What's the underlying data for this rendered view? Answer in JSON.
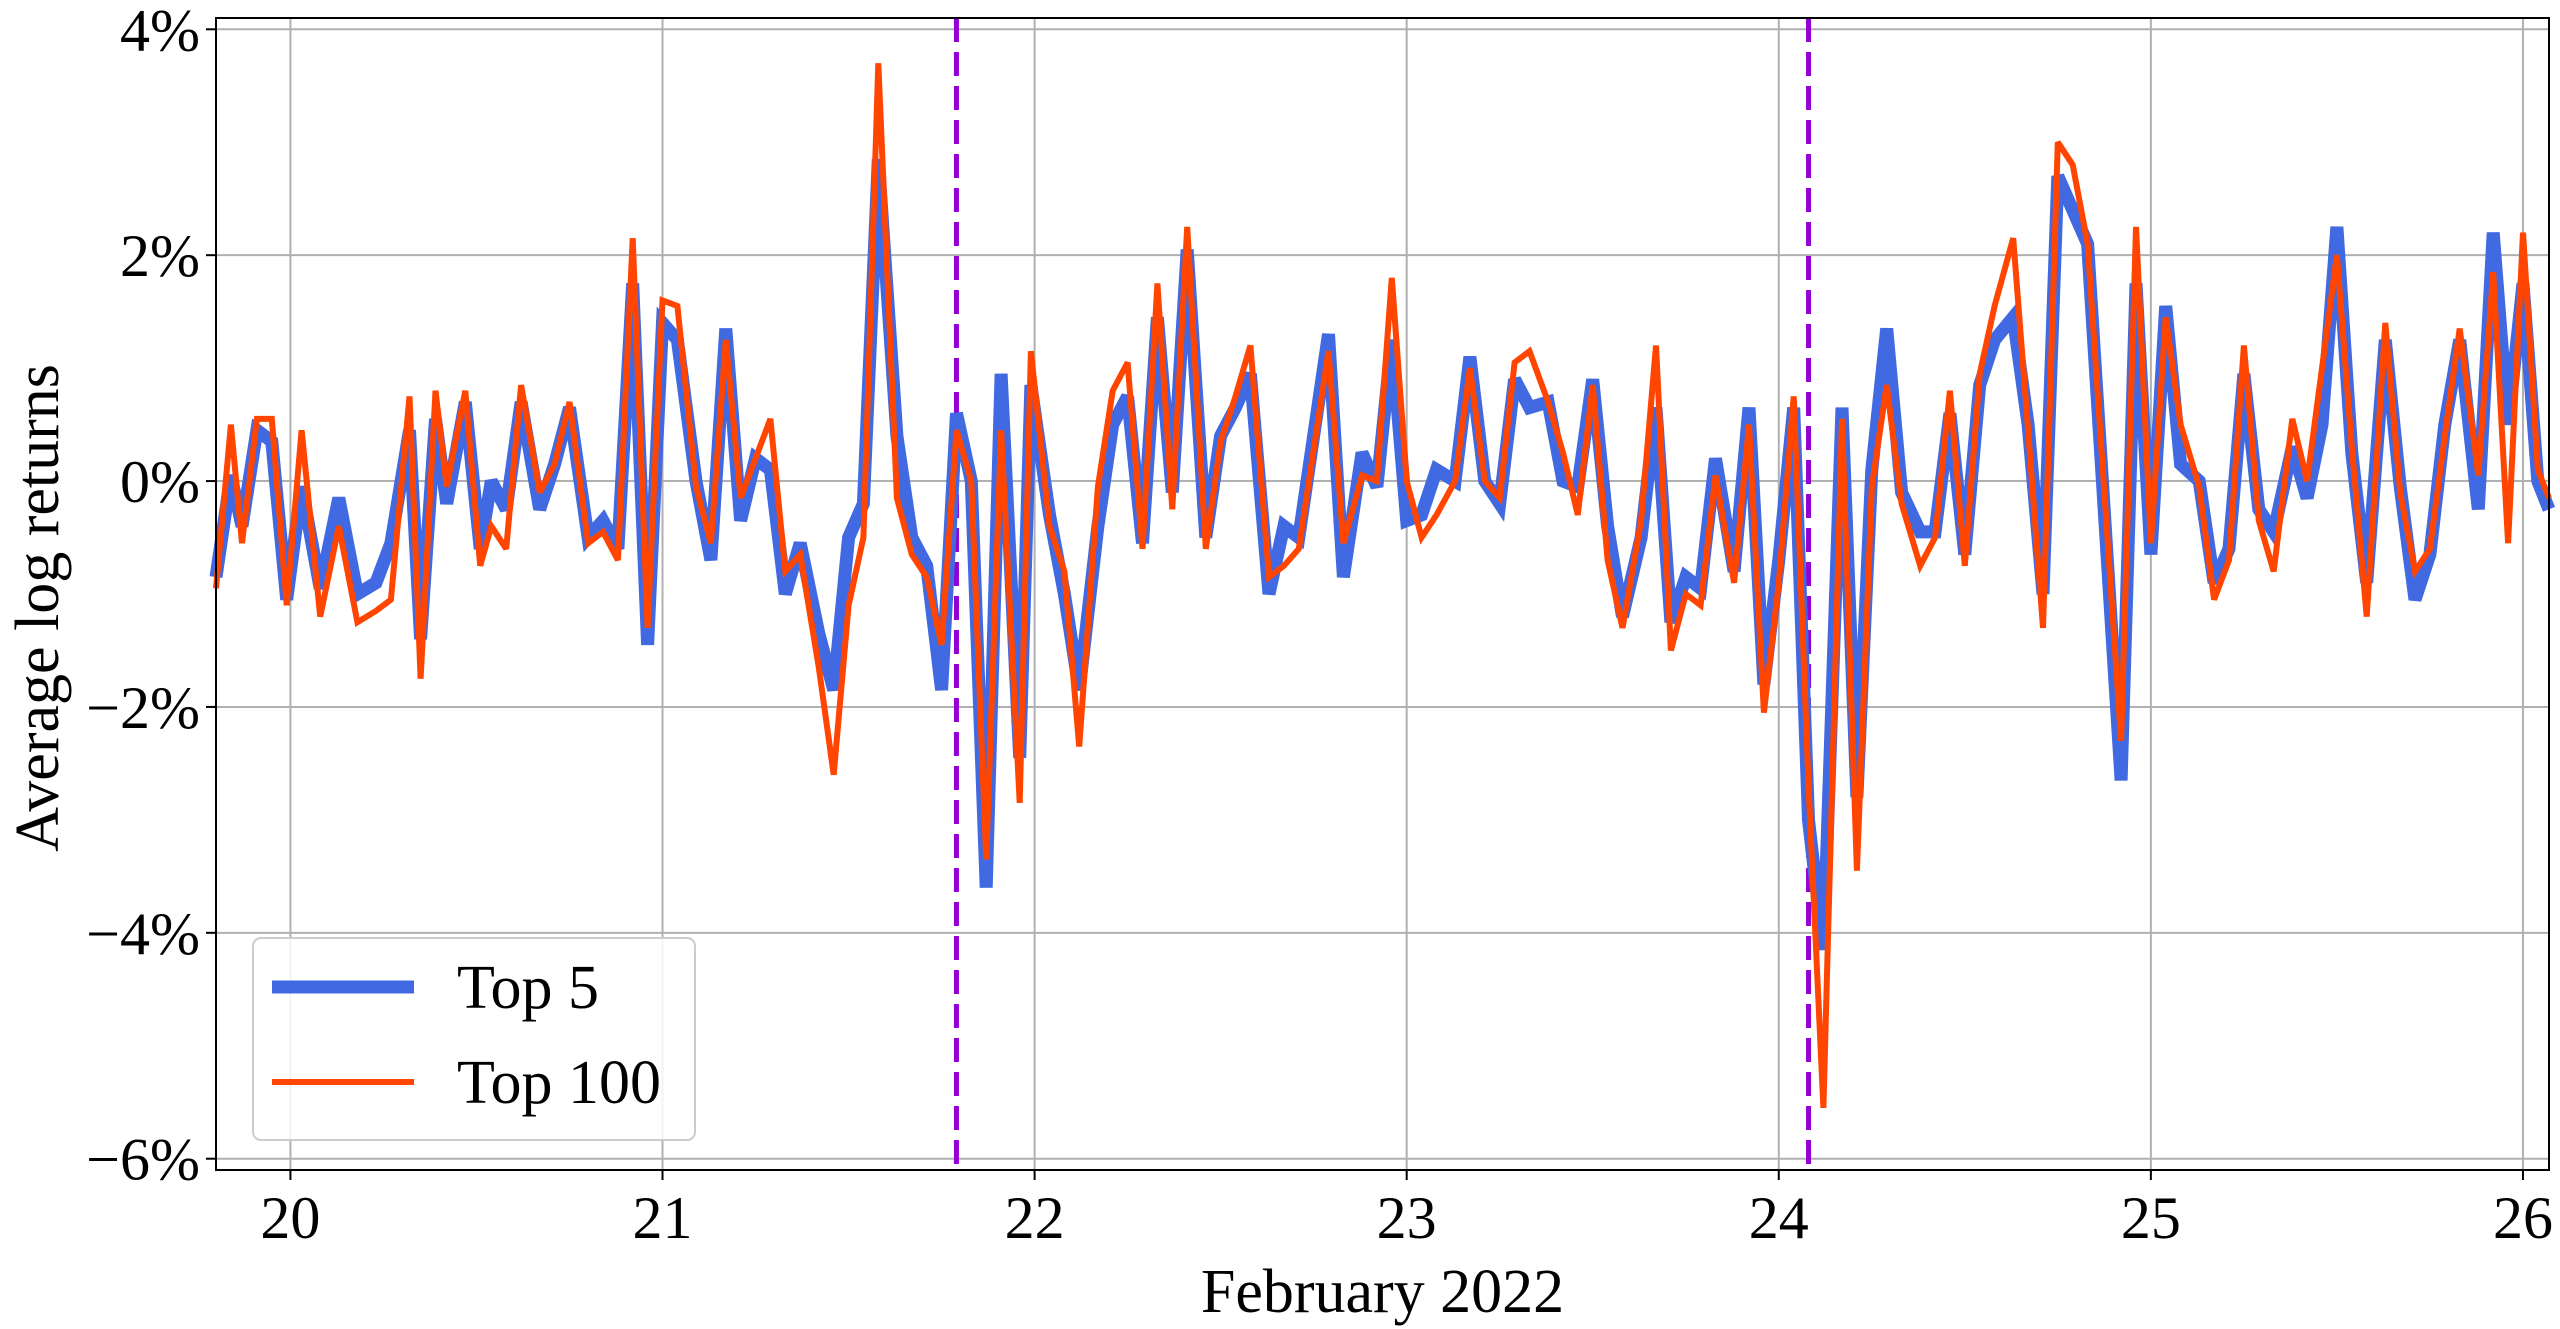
{
  "chart_data": {
    "type": "line",
    "title": "",
    "xlabel": "February 2022",
    "ylabel": "Average log returns",
    "x_ticks": [
      "20",
      "21",
      "22",
      "23",
      "24",
      "25",
      "26"
    ],
    "x_tick_values": [
      20,
      21,
      22,
      23,
      24,
      25,
      26
    ],
    "y_ticks": [
      "−6%",
      "−4%",
      "−2%",
      "0%",
      "2%",
      "4%"
    ],
    "y_tick_values": [
      -6,
      -4,
      -2,
      0,
      2,
      4
    ],
    "xlim": [
      19.8,
      26.07
    ],
    "ylim": [
      -6.1,
      4.1
    ],
    "grid": true,
    "legend_position": "lower-left",
    "vertical_markers": [
      {
        "x": 21.79,
        "color": "#9400D3",
        "style": "dashed"
      },
      {
        "x": 24.08,
        "color": "#9400D3",
        "style": "dashed"
      }
    ],
    "series": [
      {
        "name": "Top 5",
        "color": "#4169E1",
        "line_width": "thick",
        "points": [
          [
            19.8,
            -0.85
          ],
          [
            19.84,
            0.05
          ],
          [
            19.87,
            -0.4
          ],
          [
            19.91,
            0.45
          ],
          [
            19.95,
            0.35
          ],
          [
            19.99,
            -1.05
          ],
          [
            20.03,
            -0.05
          ],
          [
            20.08,
            -0.95
          ],
          [
            20.13,
            -0.15
          ],
          [
            20.18,
            -1.0
          ],
          [
            20.23,
            -0.9
          ],
          [
            20.27,
            -0.55
          ],
          [
            20.32,
            0.45
          ],
          [
            20.35,
            -1.4
          ],
          [
            20.39,
            0.55
          ],
          [
            20.42,
            -0.2
          ],
          [
            20.47,
            0.7
          ],
          [
            20.51,
            -0.6
          ],
          [
            20.54,
            0.0
          ],
          [
            20.58,
            -0.25
          ],
          [
            20.62,
            0.7
          ],
          [
            20.67,
            -0.25
          ],
          [
            20.71,
            0.15
          ],
          [
            20.75,
            0.65
          ],
          [
            20.8,
            -0.5
          ],
          [
            20.84,
            -0.35
          ],
          [
            20.88,
            -0.6
          ],
          [
            20.92,
            1.75
          ],
          [
            20.96,
            -1.45
          ],
          [
            21.0,
            1.4
          ],
          [
            21.04,
            1.25
          ],
          [
            21.09,
            0.0
          ],
          [
            21.13,
            -0.7
          ],
          [
            21.17,
            1.35
          ],
          [
            21.21,
            -0.35
          ],
          [
            21.25,
            0.2
          ],
          [
            21.29,
            0.1
          ],
          [
            21.33,
            -1.0
          ],
          [
            21.37,
            -0.55
          ],
          [
            21.42,
            -1.35
          ],
          [
            21.46,
            -1.85
          ],
          [
            21.5,
            -0.5
          ],
          [
            21.54,
            -0.2
          ],
          [
            21.58,
            2.85
          ],
          [
            21.63,
            0.4
          ],
          [
            21.67,
            -0.5
          ],
          [
            21.71,
            -0.75
          ],
          [
            21.75,
            -1.85
          ],
          [
            21.79,
            0.6
          ],
          [
            21.83,
            0.0
          ],
          [
            21.87,
            -3.6
          ],
          [
            21.91,
            0.95
          ],
          [
            21.96,
            -2.45
          ],
          [
            21.99,
            0.85
          ],
          [
            22.04,
            -0.3
          ],
          [
            22.08,
            -1.0
          ],
          [
            22.12,
            -1.85
          ],
          [
            22.17,
            -0.4
          ],
          [
            22.21,
            0.5
          ],
          [
            22.25,
            0.75
          ],
          [
            22.29,
            -0.55
          ],
          [
            22.33,
            1.45
          ],
          [
            22.37,
            -0.1
          ],
          [
            22.41,
            2.05
          ],
          [
            22.46,
            -0.5
          ],
          [
            22.5,
            0.4
          ],
          [
            22.54,
            0.65
          ],
          [
            22.58,
            0.95
          ],
          [
            22.63,
            -1.0
          ],
          [
            22.67,
            -0.4
          ],
          [
            22.71,
            -0.5
          ],
          [
            22.79,
            1.3
          ],
          [
            22.83,
            -0.85
          ],
          [
            22.88,
            0.25
          ],
          [
            22.92,
            -0.05
          ],
          [
            22.96,
            1.25
          ],
          [
            23.0,
            -0.35
          ],
          [
            23.04,
            -0.3
          ],
          [
            23.08,
            0.1
          ],
          [
            23.13,
            0.0
          ],
          [
            23.17,
            1.1
          ],
          [
            23.21,
            0.0
          ],
          [
            23.25,
            -0.2
          ],
          [
            23.29,
            0.9
          ],
          [
            23.33,
            0.65
          ],
          [
            23.38,
            0.7
          ],
          [
            23.42,
            0.0
          ],
          [
            23.46,
            -0.05
          ],
          [
            23.5,
            0.9
          ],
          [
            23.54,
            -0.4
          ],
          [
            23.58,
            -1.2
          ],
          [
            23.63,
            -0.5
          ],
          [
            23.67,
            0.65
          ],
          [
            23.71,
            -1.25
          ],
          [
            23.75,
            -0.85
          ],
          [
            23.79,
            -0.95
          ],
          [
            23.83,
            0.2
          ],
          [
            23.88,
            -0.8
          ],
          [
            23.92,
            0.65
          ],
          [
            23.96,
            -1.8
          ],
          [
            24.0,
            -0.7
          ],
          [
            24.04,
            0.65
          ],
          [
            24.08,
            -3.0
          ],
          [
            24.12,
            -4.15
          ],
          [
            24.17,
            0.65
          ],
          [
            24.21,
            -2.8
          ],
          [
            24.25,
            0.1
          ],
          [
            24.29,
            1.35
          ],
          [
            24.33,
            -0.1
          ],
          [
            24.38,
            -0.45
          ],
          [
            24.42,
            -0.45
          ],
          [
            24.46,
            0.6
          ],
          [
            24.5,
            -0.65
          ],
          [
            24.54,
            0.85
          ],
          [
            24.58,
            1.25
          ],
          [
            24.63,
            1.45
          ],
          [
            24.67,
            0.5
          ],
          [
            24.71,
            -1.0
          ],
          [
            24.75,
            2.7
          ],
          [
            24.79,
            2.4
          ],
          [
            24.83,
            2.1
          ],
          [
            24.92,
            -2.65
          ],
          [
            24.96,
            1.75
          ],
          [
            25.0,
            -0.65
          ],
          [
            25.04,
            1.55
          ],
          [
            25.08,
            0.15
          ],
          [
            25.13,
            0.0
          ],
          [
            25.17,
            -0.9
          ],
          [
            25.21,
            -0.6
          ],
          [
            25.25,
            0.95
          ],
          [
            25.29,
            -0.25
          ],
          [
            25.33,
            -0.45
          ],
          [
            25.38,
            0.3
          ],
          [
            25.42,
            -0.15
          ],
          [
            25.46,
            0.5
          ],
          [
            25.5,
            2.25
          ],
          [
            25.54,
            0.25
          ],
          [
            25.58,
            -0.9
          ],
          [
            25.63,
            1.25
          ],
          [
            25.67,
            -0.05
          ],
          [
            25.71,
            -1.05
          ],
          [
            25.75,
            -0.65
          ],
          [
            25.79,
            0.5
          ],
          [
            25.83,
            1.25
          ],
          [
            25.88,
            -0.25
          ],
          [
            25.92,
            2.2
          ],
          [
            25.96,
            0.5
          ],
          [
            26.0,
            1.75
          ],
          [
            26.04,
            0.0
          ],
          [
            26.07,
            -0.25
          ]
        ]
      },
      {
        "name": "Top 100",
        "color": "#FF4500",
        "line_width": "thin",
        "points": [
          [
            19.8,
            -0.95
          ],
          [
            19.84,
            0.5
          ],
          [
            19.87,
            -0.55
          ],
          [
            19.91,
            0.55
          ],
          [
            19.95,
            0.55
          ],
          [
            19.99,
            -1.1
          ],
          [
            20.03,
            0.45
          ],
          [
            20.08,
            -1.2
          ],
          [
            20.13,
            -0.4
          ],
          [
            20.18,
            -1.25
          ],
          [
            20.23,
            -1.15
          ],
          [
            20.27,
            -1.05
          ],
          [
            20.32,
            0.75
          ],
          [
            20.35,
            -1.75
          ],
          [
            20.39,
            0.8
          ],
          [
            20.42,
            -0.05
          ],
          [
            20.47,
            0.8
          ],
          [
            20.51,
            -0.75
          ],
          [
            20.54,
            -0.4
          ],
          [
            20.58,
            -0.6
          ],
          [
            20.62,
            0.85
          ],
          [
            20.67,
            -0.1
          ],
          [
            20.71,
            0.15
          ],
          [
            20.75,
            0.7
          ],
          [
            20.8,
            -0.55
          ],
          [
            20.84,
            -0.45
          ],
          [
            20.88,
            -0.7
          ],
          [
            20.92,
            2.15
          ],
          [
            20.96,
            -1.3
          ],
          [
            21.0,
            1.6
          ],
          [
            21.04,
            1.55
          ],
          [
            21.09,
            -0.05
          ],
          [
            21.13,
            -0.55
          ],
          [
            21.17,
            1.25
          ],
          [
            21.21,
            -0.15
          ],
          [
            21.25,
            0.2
          ],
          [
            21.29,
            0.55
          ],
          [
            21.33,
            -0.8
          ],
          [
            21.37,
            -0.65
          ],
          [
            21.42,
            -1.65
          ],
          [
            21.46,
            -2.6
          ],
          [
            21.5,
            -1.1
          ],
          [
            21.54,
            -0.5
          ],
          [
            21.58,
            3.7
          ],
          [
            21.63,
            -0.15
          ],
          [
            21.67,
            -0.65
          ],
          [
            21.71,
            -0.85
          ],
          [
            21.75,
            -1.45
          ],
          [
            21.79,
            0.45
          ],
          [
            21.83,
            0.0
          ],
          [
            21.87,
            -3.35
          ],
          [
            21.91,
            0.45
          ],
          [
            21.96,
            -2.85
          ],
          [
            21.99,
            1.15
          ],
          [
            22.04,
            -0.4
          ],
          [
            22.08,
            -0.8
          ],
          [
            22.12,
            -2.35
          ],
          [
            22.17,
            -0.05
          ],
          [
            22.21,
            0.8
          ],
          [
            22.25,
            1.05
          ],
          [
            22.29,
            -0.6
          ],
          [
            22.33,
            1.75
          ],
          [
            22.37,
            -0.25
          ],
          [
            22.41,
            2.25
          ],
          [
            22.46,
            -0.6
          ],
          [
            22.5,
            0.35
          ],
          [
            22.54,
            0.75
          ],
          [
            22.58,
            1.2
          ],
          [
            22.63,
            -0.85
          ],
          [
            22.67,
            -0.75
          ],
          [
            22.71,
            -0.6
          ],
          [
            22.79,
            1.15
          ],
          [
            22.83,
            -0.55
          ],
          [
            22.88,
            0.05
          ],
          [
            22.92,
            0.0
          ],
          [
            22.96,
            1.8
          ],
          [
            23.0,
            0.0
          ],
          [
            23.04,
            -0.5
          ],
          [
            23.08,
            -0.3
          ],
          [
            23.13,
            0.0
          ],
          [
            23.17,
            1.0
          ],
          [
            23.21,
            0.0
          ],
          [
            23.25,
            -0.15
          ],
          [
            23.29,
            1.05
          ],
          [
            23.33,
            1.15
          ],
          [
            23.38,
            0.7
          ],
          [
            23.42,
            0.25
          ],
          [
            23.46,
            -0.3
          ],
          [
            23.5,
            0.85
          ],
          [
            23.54,
            -0.7
          ],
          [
            23.58,
            -1.3
          ],
          [
            23.63,
            -0.35
          ],
          [
            23.67,
            1.2
          ],
          [
            23.71,
            -1.5
          ],
          [
            23.75,
            -1.0
          ],
          [
            23.79,
            -1.1
          ],
          [
            23.83,
            0.05
          ],
          [
            23.88,
            -0.9
          ],
          [
            23.92,
            0.5
          ],
          [
            23.96,
            -2.05
          ],
          [
            24.0,
            -0.9
          ],
          [
            24.04,
            0.75
          ],
          [
            24.08,
            -2.7
          ],
          [
            24.12,
            -5.55
          ],
          [
            24.17,
            0.55
          ],
          [
            24.21,
            -3.45
          ],
          [
            24.25,
            -0.05
          ],
          [
            24.29,
            0.85
          ],
          [
            24.33,
            -0.2
          ],
          [
            24.38,
            -0.75
          ],
          [
            24.42,
            -0.5
          ],
          [
            24.46,
            0.8
          ],
          [
            24.5,
            -0.75
          ],
          [
            24.54,
            0.95
          ],
          [
            24.58,
            1.55
          ],
          [
            24.63,
            2.15
          ],
          [
            24.67,
            0.45
          ],
          [
            24.71,
            -1.3
          ],
          [
            24.75,
            3.0
          ],
          [
            24.79,
            2.8
          ],
          [
            24.83,
            2.1
          ],
          [
            24.92,
            -2.3
          ],
          [
            24.96,
            2.25
          ],
          [
            25.0,
            -0.55
          ],
          [
            25.04,
            1.45
          ],
          [
            25.08,
            0.5
          ],
          [
            25.13,
            -0.05
          ],
          [
            25.17,
            -1.05
          ],
          [
            25.21,
            -0.7
          ],
          [
            25.25,
            1.2
          ],
          [
            25.29,
            -0.35
          ],
          [
            25.33,
            -0.8
          ],
          [
            25.38,
            0.55
          ],
          [
            25.42,
            0.0
          ],
          [
            25.46,
            1.0
          ],
          [
            25.5,
            2.0
          ],
          [
            25.54,
            0.3
          ],
          [
            25.58,
            -1.2
          ],
          [
            25.63,
            1.4
          ],
          [
            25.67,
            -0.1
          ],
          [
            25.71,
            -0.8
          ],
          [
            25.75,
            -0.6
          ],
          [
            25.79,
            0.4
          ],
          [
            25.83,
            1.35
          ],
          [
            25.88,
            0.05
          ],
          [
            25.92,
            1.85
          ],
          [
            25.96,
            -0.55
          ],
          [
            26.0,
            2.2
          ],
          [
            26.04,
            0.1
          ],
          [
            26.07,
            -0.15
          ]
        ]
      }
    ]
  }
}
